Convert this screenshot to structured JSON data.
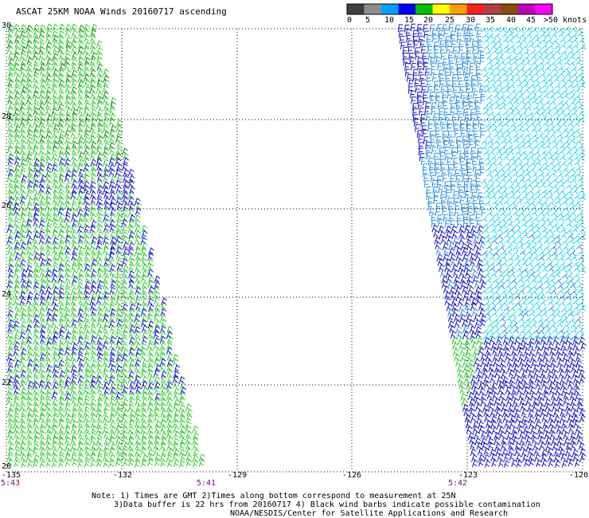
{
  "title": "ASCAT 25KM NOAA Winds 20160717 ascending",
  "legend": {
    "labels": [
      "0",
      "5",
      "10",
      "15",
      "20",
      "25",
      "30",
      "35",
      "40",
      "45",
      ">50 knots"
    ],
    "colors": [
      "#404040",
      "#8c8c8c",
      "#00a0ff",
      "#0000ff",
      "#00c000",
      "#ffff00",
      "#ffa000",
      "#ff2020",
      "#b04040",
      "#8a4a10",
      "#c000c0",
      "#ff00ff"
    ]
  },
  "map": {
    "lat_labels": [
      "30",
      "28",
      "26",
      "24",
      "22",
      "20"
    ],
    "lon_labels": [
      "-135",
      "-132",
      "-129",
      "-126",
      "-123",
      "-120"
    ],
    "pass_times": [
      "5:43",
      "5:41",
      "5:42"
    ]
  },
  "notes": [
    "Note: 1) Times are GMT 2)Times along bottom correspond to measurement at 25N",
    "3)Data buffer is 22 hrs from 20160717 4) Black wind barbs indicate possible contamination",
    "NOAA/NESDIS/Center for Satellite Applications and Research"
  ],
  "barb_colors": {
    "green": "#33cc33",
    "blue": "#1010d0",
    "light_blue": "#2a8fe8",
    "cyan": "#20d8e8",
    "dark_green": "#118811"
  }
}
